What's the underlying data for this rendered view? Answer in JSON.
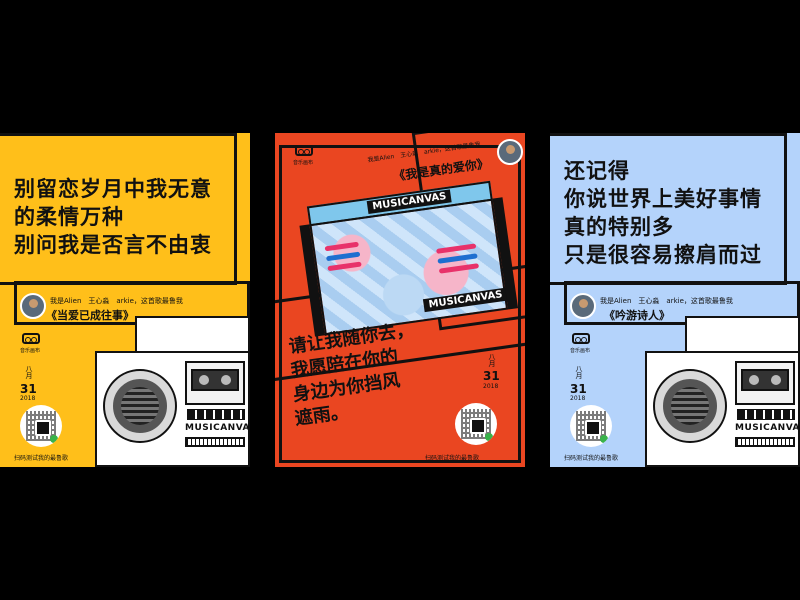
{
  "posters": [
    {
      "bg_color": "#ffbf1a",
      "lyrics": [
        "别留恋岁月中我无意",
        "的柔情万种",
        "别问我是否言不由衷"
      ],
      "credit": "我是Alien　王心淼　arkie，这首歌最鲁我",
      "song_title": "《当爱已成往事》",
      "logo_text": "音乐画布",
      "date_month": "八月",
      "date_day": "31",
      "date_year": "2018",
      "scan_text": "扫码测试我的最鲁歌",
      "brand": "MUSICANVAS"
    },
    {
      "bg_color": "#ea4621",
      "lyrics": [
        "请让我随你去，",
        "我愿陪在你的",
        "身边为你挡风",
        "遮雨。"
      ],
      "credit": "我是Alien　王心淼　arkie，这首歌最鲁我",
      "song_title": "《我是真的爱你》",
      "logo_text": "音乐画布",
      "date_month": "八月",
      "date_day": "31",
      "date_year": "2018",
      "scan_text": "扫码测试我的最鲁歌",
      "brand": "MUSICANVAS"
    },
    {
      "bg_color": "#b4d3fb",
      "lyrics": [
        "还记得",
        "你说世界上美好事情",
        "真的特别多",
        "只是很容易擦肩而过"
      ],
      "credit": "我是Alien　王心淼　arkie，这首歌最鲁我",
      "song_title": "《吟游诗人》",
      "logo_text": "音乐画布",
      "date_month": "八月",
      "date_day": "31",
      "date_year": "2018",
      "scan_text": "扫码测试我的最鲁歌",
      "brand": "MUSICANVAS"
    }
  ]
}
